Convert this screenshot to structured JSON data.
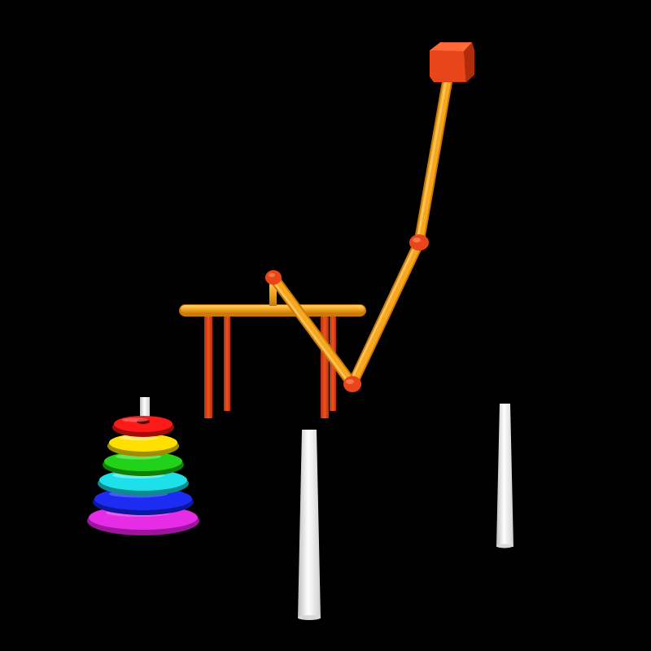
{
  "scene": {
    "background": "#000000",
    "pegs": [
      {
        "name": "left-peg",
        "color": "#ffffff"
      },
      {
        "name": "middle-peg",
        "color": "#ffffff"
      },
      {
        "name": "right-peg",
        "color": "#ffffff"
      }
    ],
    "rings_on_left_peg_top_to_bottom": [
      {
        "color": "#ff1a1a"
      },
      {
        "color": "#ffe000"
      },
      {
        "color": "#22d21a"
      },
      {
        "color": "#1ee0e8"
      },
      {
        "color": "#1c2cf2"
      },
      {
        "color": "#e62ce6"
      }
    ],
    "robot_arm": {
      "link_color": "#f7a81e",
      "joint_color": "#e8461a",
      "gripper_ring_color": "#f7a81e",
      "gripper_finger_color": "#e8461a"
    }
  }
}
